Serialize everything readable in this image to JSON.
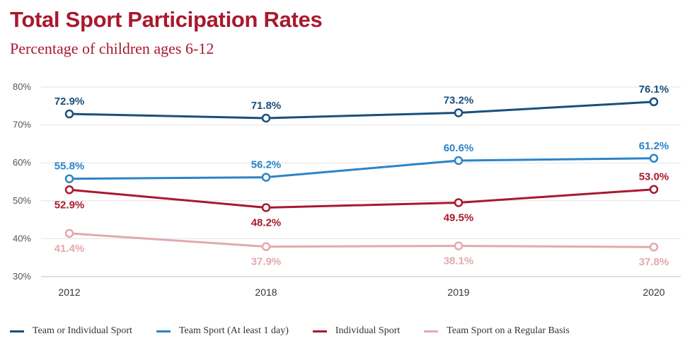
{
  "chart_data": {
    "type": "line",
    "title": "Total Sport Participation Rates",
    "subtitle": "Percentage of children ages 6-12",
    "categories": [
      "2012",
      "2018",
      "2019",
      "2020"
    ],
    "ylim": [
      30,
      80
    ],
    "yticks": [
      30,
      40,
      50,
      60,
      70,
      80
    ],
    "ytick_labels": [
      "30%",
      "40%",
      "50%",
      "60%",
      "70%",
      "80%"
    ],
    "grid": true,
    "legend_position": "bottom",
    "series": [
      {
        "name": "Team or Individual Sport",
        "color": "#1a4f7a",
        "values": [
          72.9,
          71.8,
          73.2,
          76.1
        ],
        "labels": [
          "72.9%",
          "71.8%",
          "73.2%",
          "76.1%"
        ],
        "label_side": [
          "above",
          "above",
          "above",
          "above"
        ]
      },
      {
        "name": "Team Sport (At least 1 day)",
        "color": "#2a84c9",
        "values": [
          55.8,
          56.2,
          60.6,
          61.2
        ],
        "labels": [
          "55.8%",
          "56.2%",
          "60.6%",
          "61.2%"
        ],
        "label_side": [
          "above",
          "above",
          "above",
          "above"
        ]
      },
      {
        "name": "Individual Sport",
        "color": "#a8192e",
        "values": [
          52.9,
          48.2,
          49.5,
          53.0
        ],
        "labels": [
          "52.9%",
          "48.2%",
          "49.5%",
          "53.0%"
        ],
        "label_side": [
          "below",
          "below",
          "below",
          "above"
        ]
      },
      {
        "name": "Team Sport on a Regular Basis",
        "color": "#e3a9ad",
        "values": [
          41.4,
          37.9,
          38.1,
          37.8
        ],
        "labels": [
          "41.4%",
          "37.9%",
          "38.1%",
          "37.8%"
        ],
        "label_side": [
          "below",
          "below",
          "below",
          "below"
        ]
      }
    ]
  }
}
